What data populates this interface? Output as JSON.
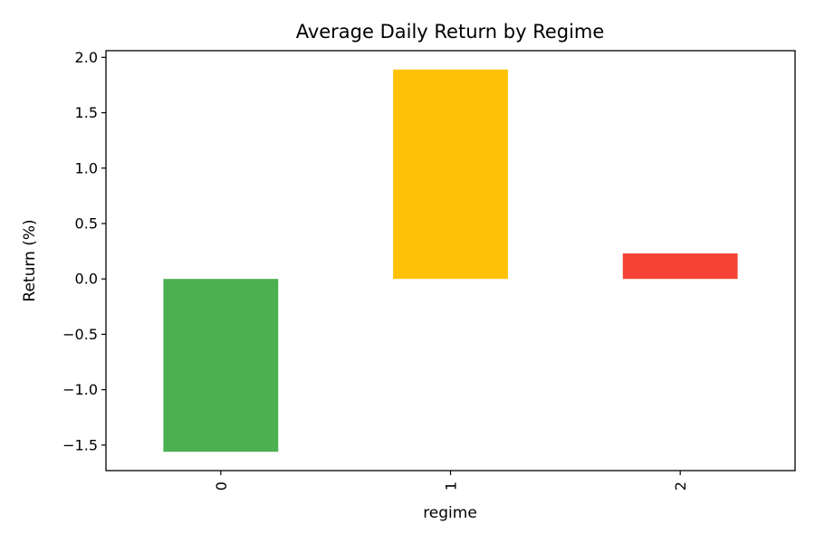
{
  "chart_data": {
    "type": "bar",
    "title": "Average Daily Return by Regime",
    "xlabel": "regime",
    "ylabel": "Return (%)",
    "categories": [
      "0",
      "1",
      "2"
    ],
    "values": [
      -1.56,
      1.89,
      0.23
    ],
    "colors": [
      "#4caf50",
      "#ffc107",
      "#f44336"
    ],
    "ylim": [
      -1.73,
      2.06
    ],
    "yticks": [
      -1.5,
      -1.0,
      -0.5,
      0.0,
      0.5,
      1.0,
      1.5,
      2.0
    ],
    "ytick_labels": [
      "−1.5",
      "−1.0",
      "−0.5",
      "0.0",
      "0.5",
      "1.0",
      "1.5",
      "2.0"
    ],
    "grid": false,
    "legend": "none"
  }
}
